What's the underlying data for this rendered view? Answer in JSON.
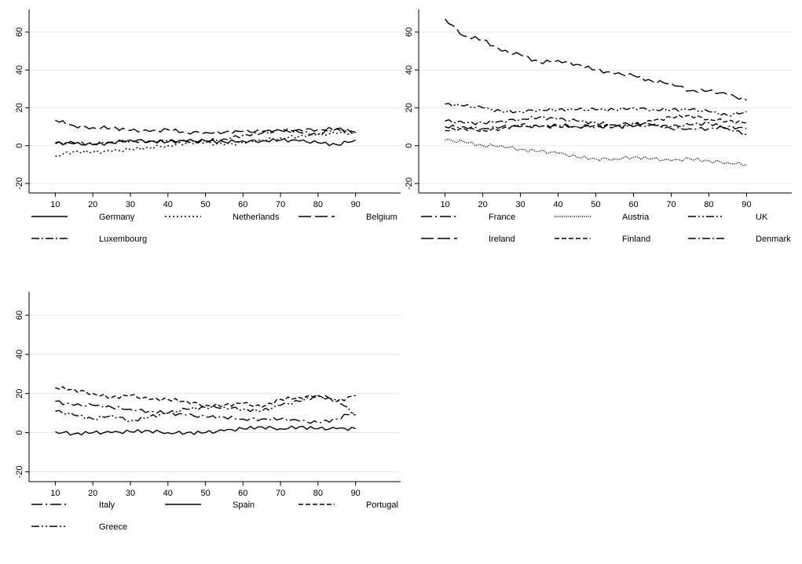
{
  "colors": {
    "line": "#000000",
    "grid": "#e6e6e6",
    "background": "#ffffff"
  },
  "chart_data": [
    {
      "type": "line",
      "title": "",
      "xlabel": "",
      "ylabel": "",
      "xlim": [
        3,
        102
      ],
      "ylim": [
        -25,
        72
      ],
      "xticks": [
        10,
        20,
        30,
        40,
        50,
        60,
        70,
        80,
        90
      ],
      "yticks": [
        -20,
        0,
        20,
        40,
        60
      ],
      "grid": true,
      "legend": "bottom",
      "x": [
        10,
        15,
        20,
        25,
        30,
        35,
        40,
        45,
        50,
        55,
        60,
        65,
        70,
        75,
        80,
        85,
        90
      ],
      "series": [
        {
          "name": "Germany",
          "style": "solid",
          "values": [
            1.5,
            1,
            0.5,
            1.5,
            3,
            2.5,
            2,
            2.5,
            2.5,
            2,
            2.5,
            2.5,
            3,
            2.5,
            1.5,
            0.5,
            3
          ]
        },
        {
          "name": "Netherlands",
          "style": "dotted",
          "values": [
            -5.5,
            -3,
            -3.5,
            -3,
            -2,
            -1,
            0,
            1.5,
            1.5,
            0.5,
            1.5,
            3,
            4,
            5,
            6,
            6.5,
            7
          ]
        },
        {
          "name": "Belgium",
          "style": "longdash",
          "values": [
            13.5,
            10.5,
            9.5,
            9.5,
            8,
            7.5,
            8.5,
            7,
            7,
            7,
            7.5,
            7.5,
            8,
            8.5,
            8.5,
            9,
            7
          ]
        },
        {
          "name": "Luxembourg",
          "style": "dashdot",
          "values": [
            1,
            1.5,
            1,
            2,
            2.5,
            2,
            2.5,
            2,
            2.5,
            3.5,
            5.5,
            6.5,
            8,
            7,
            6,
            9,
            7
          ]
        }
      ]
    },
    {
      "type": "line",
      "title": "",
      "xlabel": "",
      "ylabel": "",
      "xlim": [
        3,
        102
      ],
      "ylim": [
        -25,
        72
      ],
      "xticks": [
        10,
        20,
        30,
        40,
        50,
        60,
        70,
        80,
        90
      ],
      "yticks": [
        -20,
        0,
        20,
        40,
        60
      ],
      "grid": true,
      "legend": "bottom",
      "x": [
        10,
        15,
        20,
        25,
        30,
        35,
        40,
        45,
        50,
        55,
        60,
        65,
        70,
        75,
        80,
        85,
        90
      ],
      "series": [
        {
          "name": "France",
          "style": "longdashdot",
          "values": [
            10,
            10,
            9,
            10,
            10,
            10,
            11,
            10,
            10,
            10,
            10,
            11,
            9,
            9,
            9,
            10,
            9
          ]
        },
        {
          "name": "Austria",
          "style": "finedot",
          "values": [
            3,
            2,
            0,
            0,
            -2,
            -3,
            -4,
            -6,
            -7,
            -7,
            -6,
            -7,
            -8,
            -7,
            -8,
            -9,
            -10
          ]
        },
        {
          "name": "UK",
          "style": "dashdotdot",
          "values": [
            22,
            21,
            20,
            18,
            18,
            19,
            19,
            19,
            19,
            19,
            20,
            19,
            19,
            19,
            18,
            16,
            18
          ]
        },
        {
          "name": "Ireland",
          "style": "longdash",
          "values": [
            67,
            58,
            56,
            50,
            48,
            44,
            45,
            43,
            40,
            38,
            37,
            34,
            33,
            29,
            29,
            27,
            24
          ]
        },
        {
          "name": "Finland",
          "style": "dash",
          "values": [
            8,
            9,
            8,
            9,
            11,
            10,
            10,
            10,
            11,
            10,
            11,
            13,
            15,
            16,
            14,
            13,
            12
          ]
        },
        {
          "name": "Denmark",
          "style": "dashdot",
          "values": [
            13,
            12,
            12,
            13,
            14,
            15,
            14,
            13,
            12,
            11,
            12,
            11,
            10,
            11,
            12,
            9,
            6
          ]
        }
      ]
    },
    {
      "type": "line",
      "title": "",
      "xlabel": "",
      "ylabel": "",
      "xlim": [
        3,
        102
      ],
      "ylim": [
        -25,
        72
      ],
      "xticks": [
        10,
        20,
        30,
        40,
        50,
        60,
        70,
        80,
        90
      ],
      "yticks": [
        -20,
        0,
        20,
        40,
        60
      ],
      "grid": true,
      "legend": "bottom",
      "x": [
        10,
        15,
        20,
        25,
        30,
        35,
        40,
        45,
        50,
        55,
        60,
        65,
        70,
        75,
        80,
        85,
        90
      ],
      "series": [
        {
          "name": "Italy",
          "style": "longdashdot",
          "values": [
            16,
            14,
            14,
            13,
            12,
            11,
            10,
            9,
            8,
            8,
            7,
            7,
            7,
            6,
            5,
            7,
            11
          ]
        },
        {
          "name": "Spain",
          "style": "solid",
          "values": [
            0.5,
            -0.5,
            0,
            0,
            0.5,
            1,
            0,
            0,
            0,
            1,
            2,
            3,
            2,
            3,
            2,
            2,
            2
          ]
        },
        {
          "name": "Portugal",
          "style": "dash",
          "values": [
            23,
            22,
            20,
            18,
            19,
            17,
            17,
            16,
            14,
            14,
            15,
            13,
            17,
            18,
            19,
            16,
            19
          ]
        },
        {
          "name": "Greece",
          "style": "dashdotdot",
          "values": [
            11,
            9,
            7,
            9,
            6,
            8,
            10,
            12,
            13,
            13,
            12,
            11,
            14,
            16,
            19,
            17,
            9
          ]
        }
      ]
    }
  ]
}
